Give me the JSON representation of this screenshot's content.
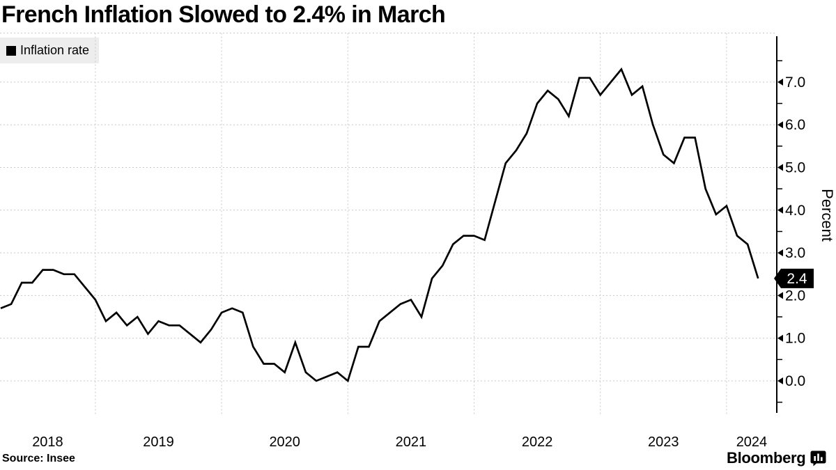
{
  "title": "French Inflation Slowed to 2.4% in March",
  "legend": {
    "label": "Inflation rate",
    "swatch_color": "#000000"
  },
  "source": "Source: Insee",
  "brand": {
    "name": "Bloomberg"
  },
  "colors": {
    "line": "#000000",
    "grid": "#c8c8c8",
    "axis": "#000000",
    "legend_bg": "#ededed",
    "badge_bg": "#000000",
    "badge_text": "#ffffff"
  },
  "chart_data": {
    "type": "line",
    "title": "French Inflation Slowed to 2.4% in March",
    "ylabel": "Percent",
    "axis_side": "right",
    "grid": "dashed",
    "legend_position": "top-left",
    "ylim": [
      -0.75,
      8.1
    ],
    "y_ticks_labeled": [
      0,
      1,
      2,
      3,
      4,
      5,
      6,
      7
    ],
    "y_tick_labels": [
      "0.0",
      "1.0",
      "2.0",
      "3.0",
      "4.0",
      "5.0",
      "6.0",
      "7.0"
    ],
    "minor_tick_step": 0.5,
    "x_year_labels": [
      "2018",
      "2019",
      "2020",
      "2021",
      "2022",
      "2023",
      "2024"
    ],
    "last_value_label": "2.4",
    "series": [
      {
        "name": "Inflation rate",
        "color": "#000000",
        "x": [
          "2018-03",
          "2018-04",
          "2018-05",
          "2018-06",
          "2018-07",
          "2018-08",
          "2018-09",
          "2018-10",
          "2018-11",
          "2018-12",
          "2019-01",
          "2019-02",
          "2019-03",
          "2019-04",
          "2019-05",
          "2019-06",
          "2019-07",
          "2019-08",
          "2019-09",
          "2019-10",
          "2019-11",
          "2019-12",
          "2020-01",
          "2020-02",
          "2020-03",
          "2020-04",
          "2020-05",
          "2020-06",
          "2020-07",
          "2020-08",
          "2020-09",
          "2020-10",
          "2020-11",
          "2020-12",
          "2021-01",
          "2021-02",
          "2021-03",
          "2021-04",
          "2021-05",
          "2021-06",
          "2021-07",
          "2021-08",
          "2021-09",
          "2021-10",
          "2021-11",
          "2021-12",
          "2022-01",
          "2022-02",
          "2022-03",
          "2022-04",
          "2022-05",
          "2022-06",
          "2022-07",
          "2022-08",
          "2022-09",
          "2022-10",
          "2022-11",
          "2022-12",
          "2023-01",
          "2023-02",
          "2023-03",
          "2023-04",
          "2023-05",
          "2023-06",
          "2023-07",
          "2023-08",
          "2023-09",
          "2023-10",
          "2023-11",
          "2023-12",
          "2024-01",
          "2024-02",
          "2024-03"
        ],
        "values": [
          1.7,
          1.8,
          2.3,
          2.3,
          2.6,
          2.6,
          2.5,
          2.5,
          2.2,
          1.9,
          1.4,
          1.6,
          1.3,
          1.5,
          1.1,
          1.4,
          1.3,
          1.3,
          1.1,
          0.9,
          1.2,
          1.6,
          1.7,
          1.6,
          0.8,
          0.4,
          0.4,
          0.2,
          0.9,
          0.2,
          0.0,
          0.1,
          0.2,
          0.0,
          0.8,
          0.8,
          1.4,
          1.6,
          1.8,
          1.9,
          1.5,
          2.4,
          2.7,
          3.2,
          3.4,
          3.4,
          3.3,
          4.2,
          5.1,
          5.4,
          5.8,
          6.5,
          6.8,
          6.6,
          6.2,
          7.1,
          7.1,
          6.7,
          7.0,
          7.3,
          6.7,
          6.9,
          6.0,
          5.3,
          5.1,
          5.7,
          5.7,
          4.5,
          3.9,
          4.1,
          3.4,
          3.2,
          2.4
        ]
      }
    ]
  }
}
